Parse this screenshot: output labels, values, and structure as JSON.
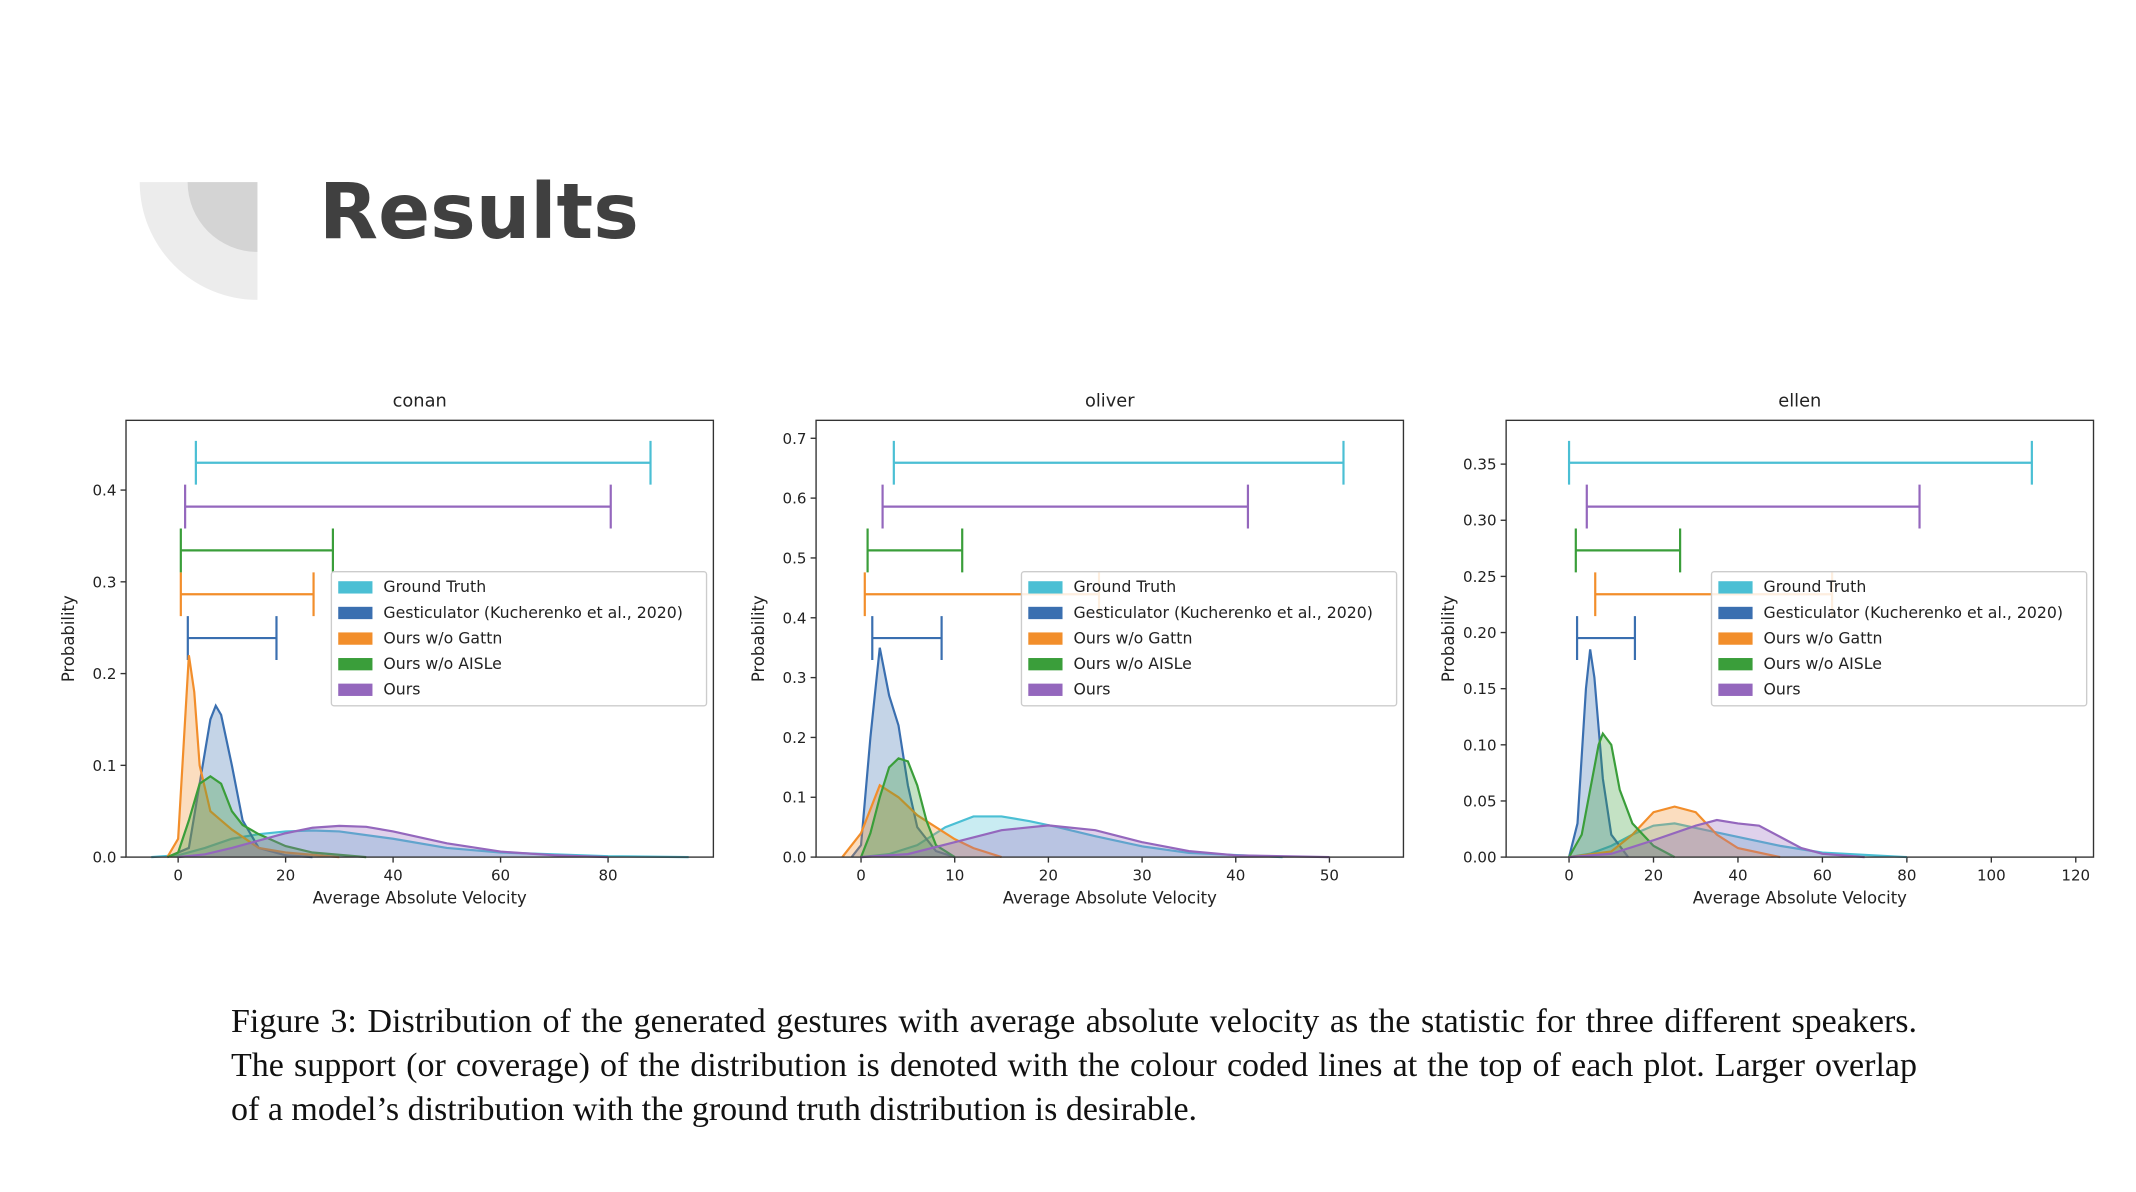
{
  "slide": {
    "title": "Results",
    "caption": "Figure 3: Distribution of the generated gestures with average absolute velocity as the statistic for three different speakers. The support (or coverage) of the distribution is denoted with the colour coded lines at the top of each plot. Larger overlap of a model’s distribution with the ground truth distribution is desirable."
  },
  "chart_data": [
    {
      "type": "area",
      "title": "conan",
      "xlabel": "Average Absolute Velocity",
      "ylabel": "Probability",
      "xlim": [
        -9.7,
        99.6
      ],
      "ylim": [
        0,
        0.476
      ],
      "xticks": [
        0,
        20,
        40,
        60,
        80
      ],
      "yticks": [
        {
          "value": 0,
          "label": "0.0"
        },
        0.1,
        0.2,
        0.3,
        0.4
      ],
      "legend": "center right",
      "series": [
        {
          "name": "Ground Truth",
          "color": "#4bbfd4",
          "support": [
            3.3,
            87.9
          ],
          "x": [
            -5,
            0,
            5,
            10,
            15,
            20,
            25,
            30,
            40,
            50,
            60,
            80,
            95
          ],
          "values": [
            0,
            0.002,
            0.01,
            0.02,
            0.025,
            0.028,
            0.029,
            0.028,
            0.02,
            0.01,
            0.005,
            0.001,
            0
          ]
        },
        {
          "name": "Gesticulator (Kucherenko et al., 2020)",
          "color": "#3a6fb0",
          "support": [
            1.8,
            18.3
          ],
          "x": [
            -2,
            2,
            4,
            6,
            7,
            8,
            10,
            12,
            15,
            20,
            25
          ],
          "values": [
            0,
            0.01,
            0.08,
            0.15,
            0.165,
            0.155,
            0.1,
            0.04,
            0.01,
            0.002,
            0
          ]
        },
        {
          "name": "Ours w/o Gattn",
          "color": "#f28e2b",
          "support": [
            0.5,
            25.2
          ],
          "x": [
            -2,
            0,
            1,
            2,
            3,
            4,
            6,
            8,
            10,
            15,
            20,
            30
          ],
          "values": [
            0,
            0.02,
            0.12,
            0.22,
            0.18,
            0.1,
            0.05,
            0.04,
            0.03,
            0.01,
            0.005,
            0
          ]
        },
        {
          "name": "Ours w/o AISLe",
          "color": "#3a9e3a",
          "support": [
            0.5,
            28.8
          ],
          "x": [
            -2,
            0,
            2,
            4,
            6,
            8,
            10,
            12,
            15,
            20,
            25,
            35
          ],
          "values": [
            0,
            0.005,
            0.04,
            0.08,
            0.088,
            0.08,
            0.05,
            0.035,
            0.025,
            0.012,
            0.005,
            0
          ]
        },
        {
          "name": "Ours",
          "color": "#9467bd",
          "support": [
            1.3,
            80.5
          ],
          "x": [
            0,
            5,
            10,
            15,
            20,
            25,
            30,
            35,
            40,
            50,
            60,
            70,
            80
          ],
          "values": [
            0,
            0.003,
            0.01,
            0.018,
            0.026,
            0.032,
            0.034,
            0.033,
            0.028,
            0.015,
            0.006,
            0.002,
            0
          ]
        }
      ]
    },
    {
      "type": "area",
      "title": "oliver",
      "xlabel": "Average Absolute Velocity",
      "ylabel": "Probability",
      "xlim": [
        -4.8,
        57.9
      ],
      "ylim": [
        0,
        0.73
      ],
      "xticks": [
        0,
        10,
        20,
        30,
        40,
        50
      ],
      "yticks": [
        {
          "value": 0,
          "label": "0.0"
        },
        0.1,
        0.2,
        0.3,
        0.4,
        0.5,
        0.6,
        0.7
      ],
      "legend": "center right",
      "series": [
        {
          "name": "Ground Truth",
          "color": "#4bbfd4",
          "support": [
            3.5,
            51.5
          ],
          "x": [
            0,
            3,
            6,
            9,
            12,
            15,
            18,
            21,
            25,
            30,
            35,
            45
          ],
          "values": [
            0,
            0.005,
            0.02,
            0.05,
            0.068,
            0.068,
            0.06,
            0.05,
            0.035,
            0.018,
            0.007,
            0
          ]
        },
        {
          "name": "Gesticulator (Kucherenko et al., 2020)",
          "color": "#3a6fb0",
          "support": [
            1.2,
            8.6
          ],
          "x": [
            -1,
            0,
            1,
            2,
            3,
            4,
            5,
            6,
            8,
            10
          ],
          "values": [
            0,
            0.02,
            0.2,
            0.35,
            0.27,
            0.22,
            0.12,
            0.05,
            0.01,
            0
          ]
        },
        {
          "name": "Ours w/o Gattn",
          "color": "#f28e2b",
          "support": [
            0.4,
            25.4
          ],
          "x": [
            -2,
            0,
            2,
            4,
            6,
            8,
            10,
            12,
            15
          ],
          "values": [
            0,
            0.04,
            0.12,
            0.1,
            0.07,
            0.05,
            0.03,
            0.015,
            0
          ]
        },
        {
          "name": "Ours w/o AISLe",
          "color": "#3a9e3a",
          "support": [
            0.7,
            10.8
          ],
          "x": [
            0,
            1,
            2,
            3,
            4,
            5,
            6,
            7,
            8,
            10
          ],
          "values": [
            0,
            0.04,
            0.1,
            0.15,
            0.165,
            0.16,
            0.12,
            0.06,
            0.02,
            0
          ]
        },
        {
          "name": "Ours",
          "color": "#9467bd",
          "support": [
            2.3,
            41.3
          ],
          "x": [
            0,
            5,
            10,
            15,
            20,
            25,
            30,
            35,
            40,
            50
          ],
          "values": [
            0,
            0.005,
            0.025,
            0.045,
            0.053,
            0.045,
            0.025,
            0.01,
            0.003,
            0
          ]
        }
      ]
    },
    {
      "type": "area",
      "title": "ellen",
      "xlabel": "Average Absolute Velocity",
      "ylabel": "Probability",
      "xlim": [
        -14.9,
        124.2
      ],
      "ylim": [
        0,
        0.389
      ],
      "xticks": [
        0,
        20,
        40,
        60,
        80,
        100,
        120
      ],
      "yticks": [
        {
          "value": 0,
          "label": "0.00"
        },
        0.05,
        {
          "value": 0.1,
          "label": "0.10"
        },
        0.15,
        {
          "value": 0.2,
          "label": "0.20"
        },
        0.25,
        {
          "value": 0.3,
          "label": "0.30"
        },
        0.35
      ],
      "legend": "center right",
      "series": [
        {
          "name": "Ground Truth",
          "color": "#4bbfd4",
          "support": [
            0,
            109.6
          ],
          "x": [
            0,
            5,
            10,
            15,
            20,
            25,
            30,
            35,
            40,
            50,
            60,
            80
          ],
          "values": [
            0,
            0.003,
            0.01,
            0.02,
            0.028,
            0.03,
            0.026,
            0.022,
            0.018,
            0.01,
            0.004,
            0
          ]
        },
        {
          "name": "Gesticulator (Kucherenko et al., 2020)",
          "color": "#3a6fb0",
          "support": [
            1.9,
            15.6
          ],
          "x": [
            0,
            2,
            4,
            5,
            6,
            8,
            10,
            14
          ],
          "values": [
            0,
            0.03,
            0.15,
            0.185,
            0.16,
            0.07,
            0.02,
            0
          ]
        },
        {
          "name": "Ours w/o Gattn",
          "color": "#f28e2b",
          "support": [
            6.2,
            62.3
          ],
          "x": [
            0,
            10,
            15,
            20,
            25,
            30,
            35,
            40,
            50
          ],
          "values": [
            0,
            0.005,
            0.02,
            0.04,
            0.045,
            0.04,
            0.02,
            0.008,
            0
          ]
        },
        {
          "name": "Ours w/o AISLe",
          "color": "#3a9e3a",
          "support": [
            1.6,
            26.3
          ],
          "x": [
            0,
            3,
            5,
            7,
            8,
            10,
            12,
            15,
            20,
            25
          ],
          "values": [
            0,
            0.02,
            0.06,
            0.1,
            0.11,
            0.1,
            0.06,
            0.03,
            0.01,
            0
          ]
        },
        {
          "name": "Ours",
          "color": "#9467bd",
          "support": [
            4.2,
            83
          ],
          "x": [
            0,
            10,
            20,
            30,
            35,
            40,
            45,
            50,
            55,
            60,
            70
          ],
          "values": [
            0,
            0.003,
            0.015,
            0.028,
            0.033,
            0.03,
            0.028,
            0.018,
            0.008,
            0.003,
            0
          ]
        }
      ]
    }
  ]
}
